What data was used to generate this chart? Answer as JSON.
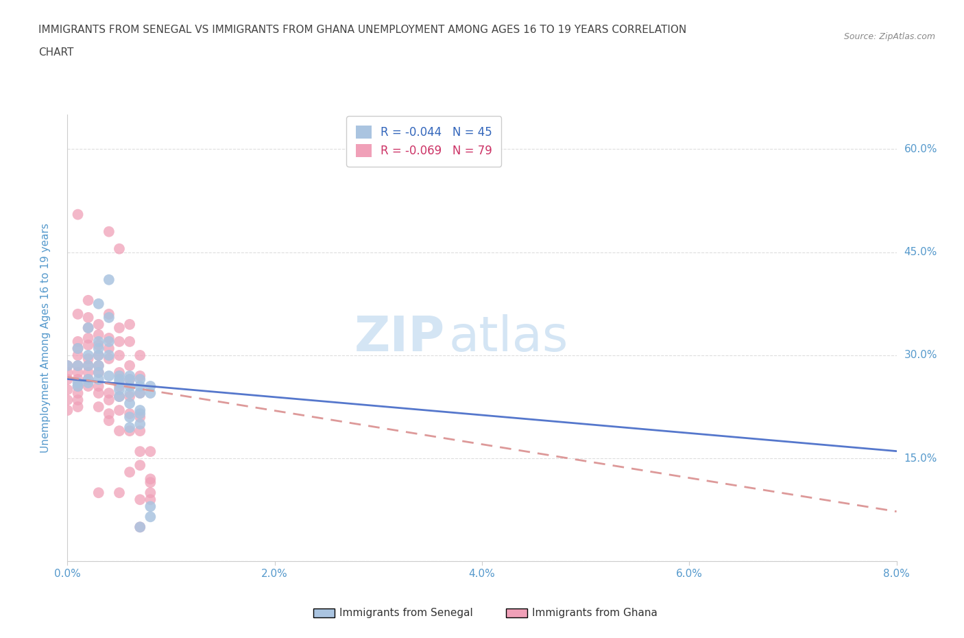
{
  "title_line1": "IMMIGRANTS FROM SENEGAL VS IMMIGRANTS FROM GHANA UNEMPLOYMENT AMONG AGES 16 TO 19 YEARS CORRELATION",
  "title_line2": "CHART",
  "source": "Source: ZipAtlas.com",
  "ylabel": "Unemployment Among Ages 16 to 19 years",
  "xlim": [
    0.0,
    0.08
  ],
  "ylim": [
    0.0,
    0.65
  ],
  "xticks": [
    0.0,
    0.02,
    0.04,
    0.06,
    0.08
  ],
  "xticklabels": [
    "0.0%",
    "2.0%",
    "4.0%",
    "6.0%",
    "8.0%"
  ],
  "yticks": [
    0.0,
    0.15,
    0.3,
    0.45,
    0.6
  ],
  "yticklabels": [
    "0.0%",
    "15.0%",
    "30.0%",
    "45.0%",
    "60.0%"
  ],
  "senegal_color": "#aac4e0",
  "ghana_color": "#f0a0b8",
  "senegal_R": -0.044,
  "senegal_N": 45,
  "ghana_R": -0.069,
  "ghana_N": 79,
  "legend_label_senegal": "Immigrants from Senegal",
  "legend_label_ghana": "Immigrants from Ghana",
  "watermark_zip": "ZIP",
  "watermark_atlas": "atlas",
  "background_color": "#ffffff",
  "grid_color": "#dddddd",
  "title_color": "#444444",
  "axis_label_color": "#5599cc",
  "tick_label_color": "#5599cc",
  "regression_color_senegal": "#5577cc",
  "regression_color_ghana": "#dd9999",
  "legend_text_color_senegal": "#3366bb",
  "legend_text_color_ghana": "#cc3366",
  "senegal_points": [
    [
      0.0,
      0.285
    ],
    [
      0.001,
      0.26
    ],
    [
      0.001,
      0.285
    ],
    [
      0.001,
      0.255
    ],
    [
      0.001,
      0.31
    ],
    [
      0.002,
      0.34
    ],
    [
      0.002,
      0.3
    ],
    [
      0.002,
      0.285
    ],
    [
      0.002,
      0.265
    ],
    [
      0.002,
      0.26
    ],
    [
      0.003,
      0.375
    ],
    [
      0.003,
      0.32
    ],
    [
      0.003,
      0.31
    ],
    [
      0.003,
      0.3
    ],
    [
      0.003,
      0.285
    ],
    [
      0.003,
      0.275
    ],
    [
      0.003,
      0.265
    ],
    [
      0.004,
      0.41
    ],
    [
      0.004,
      0.355
    ],
    [
      0.004,
      0.32
    ],
    [
      0.004,
      0.3
    ],
    [
      0.004,
      0.27
    ],
    [
      0.005,
      0.27
    ],
    [
      0.005,
      0.265
    ],
    [
      0.005,
      0.26
    ],
    [
      0.005,
      0.25
    ],
    [
      0.005,
      0.24
    ],
    [
      0.006,
      0.27
    ],
    [
      0.006,
      0.265
    ],
    [
      0.006,
      0.255
    ],
    [
      0.006,
      0.245
    ],
    [
      0.006,
      0.23
    ],
    [
      0.006,
      0.21
    ],
    [
      0.006,
      0.195
    ],
    [
      0.007,
      0.265
    ],
    [
      0.007,
      0.255
    ],
    [
      0.007,
      0.245
    ],
    [
      0.007,
      0.22
    ],
    [
      0.007,
      0.215
    ],
    [
      0.007,
      0.2
    ],
    [
      0.007,
      0.05
    ],
    [
      0.008,
      0.255
    ],
    [
      0.008,
      0.245
    ],
    [
      0.008,
      0.08
    ],
    [
      0.008,
      0.065
    ]
  ],
  "ghana_points": [
    [
      0.0,
      0.285
    ],
    [
      0.0,
      0.275
    ],
    [
      0.0,
      0.265
    ],
    [
      0.0,
      0.25
    ],
    [
      0.0,
      0.235
    ],
    [
      0.0,
      0.22
    ],
    [
      0.001,
      0.505
    ],
    [
      0.001,
      0.36
    ],
    [
      0.001,
      0.32
    ],
    [
      0.001,
      0.31
    ],
    [
      0.001,
      0.3
    ],
    [
      0.001,
      0.285
    ],
    [
      0.001,
      0.275
    ],
    [
      0.001,
      0.265
    ],
    [
      0.001,
      0.255
    ],
    [
      0.001,
      0.245
    ],
    [
      0.001,
      0.235
    ],
    [
      0.001,
      0.225
    ],
    [
      0.002,
      0.38
    ],
    [
      0.002,
      0.355
    ],
    [
      0.002,
      0.34
    ],
    [
      0.002,
      0.325
    ],
    [
      0.002,
      0.315
    ],
    [
      0.002,
      0.295
    ],
    [
      0.002,
      0.285
    ],
    [
      0.002,
      0.275
    ],
    [
      0.002,
      0.265
    ],
    [
      0.002,
      0.255
    ],
    [
      0.003,
      0.345
    ],
    [
      0.003,
      0.33
    ],
    [
      0.003,
      0.315
    ],
    [
      0.003,
      0.3
    ],
    [
      0.003,
      0.285
    ],
    [
      0.003,
      0.275
    ],
    [
      0.003,
      0.255
    ],
    [
      0.003,
      0.245
    ],
    [
      0.003,
      0.225
    ],
    [
      0.003,
      0.1
    ],
    [
      0.004,
      0.48
    ],
    [
      0.004,
      0.36
    ],
    [
      0.004,
      0.325
    ],
    [
      0.004,
      0.31
    ],
    [
      0.004,
      0.295
    ],
    [
      0.004,
      0.245
    ],
    [
      0.004,
      0.235
    ],
    [
      0.004,
      0.215
    ],
    [
      0.004,
      0.205
    ],
    [
      0.005,
      0.455
    ],
    [
      0.005,
      0.34
    ],
    [
      0.005,
      0.32
    ],
    [
      0.005,
      0.3
    ],
    [
      0.005,
      0.275
    ],
    [
      0.005,
      0.255
    ],
    [
      0.005,
      0.24
    ],
    [
      0.005,
      0.22
    ],
    [
      0.005,
      0.19
    ],
    [
      0.005,
      0.1
    ],
    [
      0.006,
      0.345
    ],
    [
      0.006,
      0.32
    ],
    [
      0.006,
      0.285
    ],
    [
      0.006,
      0.265
    ],
    [
      0.006,
      0.24
    ],
    [
      0.006,
      0.215
    ],
    [
      0.006,
      0.19
    ],
    [
      0.006,
      0.13
    ],
    [
      0.007,
      0.3
    ],
    [
      0.007,
      0.27
    ],
    [
      0.007,
      0.245
    ],
    [
      0.007,
      0.21
    ],
    [
      0.007,
      0.19
    ],
    [
      0.007,
      0.16
    ],
    [
      0.007,
      0.14
    ],
    [
      0.007,
      0.09
    ],
    [
      0.007,
      0.05
    ],
    [
      0.008,
      0.16
    ],
    [
      0.008,
      0.12
    ],
    [
      0.008,
      0.115
    ],
    [
      0.008,
      0.1
    ],
    [
      0.008,
      0.09
    ]
  ]
}
